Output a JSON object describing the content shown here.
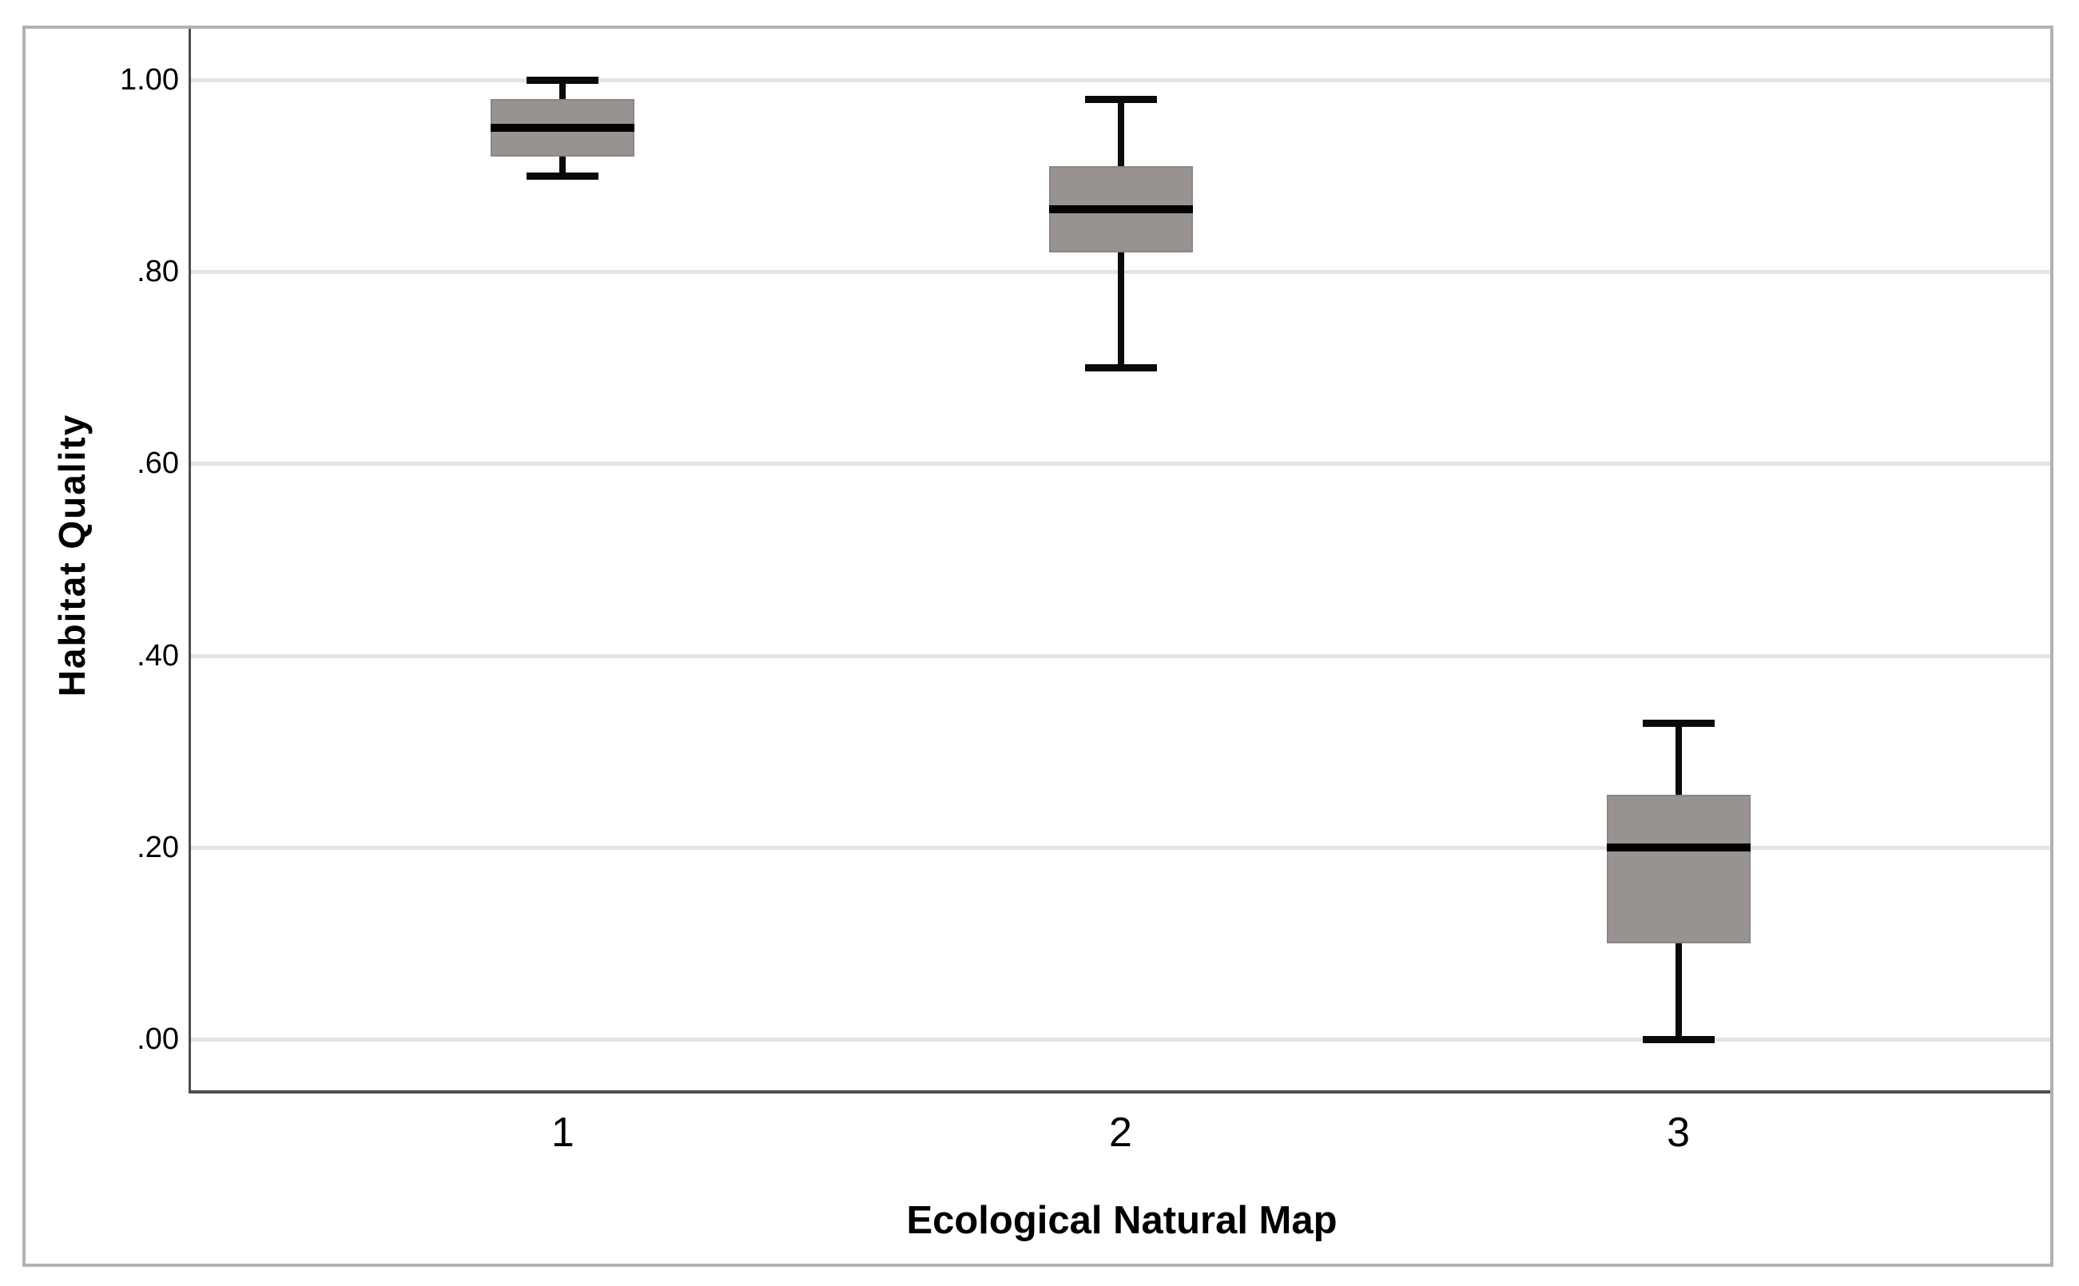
{
  "chart_data": {
    "type": "boxplot",
    "title": "",
    "xlabel": "Ecological Natural Map",
    "ylabel": "Habitat Quality",
    "categories": [
      "1",
      "2",
      "3"
    ],
    "series": [
      {
        "category": "1",
        "min": 0.9,
        "q1": 0.92,
        "median": 0.95,
        "q3": 0.98,
        "max": 1.0
      },
      {
        "category": "2",
        "min": 0.7,
        "q1": 0.82,
        "median": 0.865,
        "q3": 0.91,
        "max": 0.98
      },
      {
        "category": "3",
        "min": 0.0,
        "q1": 0.1,
        "median": 0.2,
        "q3": 0.255,
        "max": 0.33
      }
    ],
    "yticks": [
      {
        "label": "1.00",
        "value": 1.0
      },
      {
        "label": ".80",
        "value": 0.8
      },
      {
        "label": ".60",
        "value": 0.6
      },
      {
        "label": ".40",
        "value": 0.4
      },
      {
        "label": ".20",
        "value": 0.2
      },
      {
        "label": ".00",
        "value": 0.0
      }
    ],
    "ylim": [
      0,
      1
    ],
    "grid": "horizontal",
    "legend": "none",
    "colors": {
      "box_fill": "#989390",
      "box_border": "#8a8683",
      "median": "#000000",
      "whisker": "#0a0a0a",
      "gridline": "#e4e2e2",
      "axis_line": "#4c4c4c",
      "frame_border": "#b5b1b0",
      "background": "#ffffff",
      "text": "#000000"
    }
  }
}
